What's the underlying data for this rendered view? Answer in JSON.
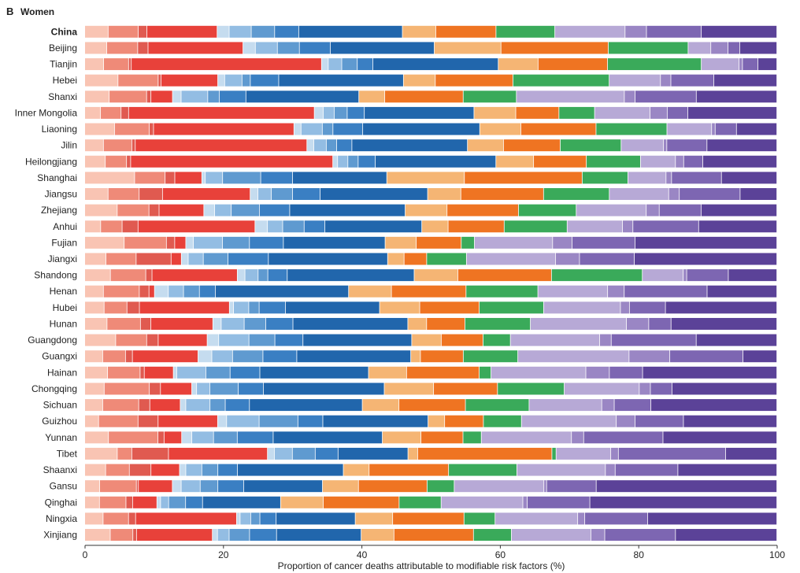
{
  "panel_label": "B",
  "panel_title": "Women",
  "chart_data": {
    "type": "bar",
    "orientation": "horizontal",
    "stacked": true,
    "xlabel": "Proportion of cancer deaths attributable to modifiable risk factors (%)",
    "xlim": [
      0,
      100
    ],
    "xticks": [
      "0",
      "20",
      "40",
      "60",
      "80",
      "100"
    ],
    "categories": [
      "China",
      "Beijing",
      "Tianjin",
      "Hebei",
      "Shanxi",
      "Inner Mongolia",
      "Liaoning",
      "Jilin",
      "Heilongjiang",
      "Shanghai",
      "Jiangsu",
      "Zhejiang",
      "Anhui",
      "Fujian",
      "Jiangxi",
      "Shandong",
      "Henan",
      "Hubei",
      "Hunan",
      "Guangdong",
      "Guangxi",
      "Hainan",
      "Chongqing",
      "Sichuan",
      "Guizhou",
      "Yunnan",
      "Tibet",
      "Shaanxi",
      "Gansu",
      "Qinghai",
      "Ningxia",
      "Xinjiang"
    ],
    "bold_categories": [
      "China"
    ],
    "series_colors": [
      "#f9c4b3",
      "#ef8a78",
      "#e05a50",
      "#e8413a",
      "#c5dcef",
      "#93bde3",
      "#5f9ad0",
      "#3a7fc3",
      "#2166ac",
      "#f5b574",
      "#ef7422",
      "#3aaa5a",
      "#b7a9d6",
      "#9a86c4",
      "#7d66b2",
      "#5b4298"
    ],
    "rows": [
      [
        3.5,
        4.5,
        1.3,
        10.5,
        1.8,
        3.3,
        3.5,
        3.6,
        15.5,
        5,
        9,
        8.8,
        10.5,
        3.2,
        8.2,
        11.3
      ],
      [
        3.2,
        4.5,
        1.5,
        13.8,
        1.8,
        3.2,
        3.2,
        4.5,
        15.1,
        9.7,
        15.6,
        11.6,
        3.3,
        2.5,
        1.7,
        5.4
      ],
      [
        2.8,
        3.7,
        0.4,
        28.2,
        1,
        2,
        2.3,
        2.3,
        18.6,
        5.9,
        10.3,
        13.9,
        5.6,
        0.5,
        2.3,
        2.8
      ],
      [
        4.8,
        5.8,
        0.4,
        8.2,
        1,
        2.5,
        1.2,
        4.1,
        18,
        4.6,
        11.2,
        13.9,
        7.4,
        1.5,
        6.2,
        9.1
      ],
      [
        3.4,
        5.2,
        0.6,
        3,
        1.2,
        3.7,
        1.6,
        3.7,
        15.7,
        3.6,
        10.9,
        7.4,
        15,
        1.5,
        8.5,
        11.2
      ],
      [
        2.3,
        3,
        1.1,
        27.1,
        1.3,
        1.6,
        1.9,
        2.5,
        16,
        6.1,
        6.3,
        5.2,
        8.1,
        2.5,
        3,
        13
      ],
      [
        4.2,
        4.9,
        0.6,
        19.8,
        1,
        3,
        1.5,
        4.2,
        16.5,
        5.8,
        10.6,
        10,
        6.3,
        0.5,
        3,
        5.7
      ],
      [
        2.7,
        4.1,
        0.5,
        24.8,
        1,
        1.8,
        1.5,
        2.2,
        16.7,
        5.2,
        8.2,
        8.8,
        6.1,
        0.5,
        5.8,
        10.1
      ],
      [
        3,
        3.1,
        0.6,
        29.5,
        0.7,
        1.5,
        1.5,
        2.5,
        17.6,
        5.5,
        7.7,
        7.9,
        5.1,
        1.2,
        2.8,
        10.8
      ],
      [
        7.2,
        4.4,
        1.4,
        3.9,
        0.5,
        2.5,
        5.5,
        4.6,
        13.6,
        11.2,
        17,
        6.6,
        5.5,
        0.8,
        7.2,
        8
      ],
      [
        3.3,
        4.4,
        3.3,
        12.4,
        1.1,
        1.9,
        3,
        3.9,
        15.2,
        4.7,
        11.7,
        9.3,
        8.4,
        1.5,
        8.6,
        5.2
      ],
      [
        4.5,
        4.4,
        1.4,
        6.2,
        1.5,
        2.3,
        3.9,
        4.2,
        16,
        5.8,
        9.9,
        8,
        9.7,
        1.8,
        5.8,
        10.5
      ],
      [
        2.3,
        3.1,
        2.3,
        16.9,
        1.8,
        2.2,
        3.1,
        3,
        14,
        3.8,
        8.1,
        9.1,
        8,
        1.5,
        9.5,
        11.3
      ],
      [
        5.7,
        6.1,
        1.2,
        1.6,
        1.1,
        4.2,
        3.9,
        4.9,
        14.7,
        4.5,
        6.5,
        1.9,
        11.3,
        2.8,
        9.1,
        20.5
      ],
      [
        3.1,
        4.4,
        5.1,
        1.5,
        1,
        2.2,
        3.6,
        5.9,
        17.4,
        2.4,
        3.3,
        5.8,
        13,
        3.5,
        8,
        20.8
      ],
      [
        3.7,
        5.1,
        0.9,
        12.3,
        1.1,
        1.9,
        1.4,
        2.8,
        18.3,
        6.3,
        13.5,
        13.1,
        5.9,
        0.5,
        6,
        7
      ],
      [
        2.7,
        5.2,
        1.4,
        0.8,
        2,
        2.2,
        2.3,
        2.3,
        19.3,
        6.2,
        10.8,
        10.4,
        10.1,
        2.4,
        12,
        10.1
      ],
      [
        2.8,
        3.3,
        1.8,
        13,
        0.6,
        2.2,
        1.5,
        3.8,
        13.6,
        5.8,
        8.6,
        9.3,
        11.1,
        1.3,
        5.2,
        16.1
      ],
      [
        3.2,
        4.8,
        1.5,
        8.9,
        1.2,
        3.3,
        3.1,
        3.9,
        16.5,
        2.7,
        5.5,
        9.4,
        13.8,
        3.2,
        3.2,
        15.2
      ],
      [
        4.3,
        4.3,
        1.6,
        6.8,
        1.6,
        4.2,
        3.6,
        3.9,
        15.1,
        4.1,
        5.8,
        3.8,
        12.4,
        1.6,
        11.8,
        11.2
      ],
      [
        2.6,
        3.3,
        1,
        9.5,
        2,
        3,
        4.4,
        4.9,
        16.5,
        1.4,
        6.2,
        7.9,
        16.1,
        5.9,
        10.6,
        4.9
      ],
      [
        3.3,
        4.7,
        0.6,
        4.2,
        0.5,
        4.2,
        3.5,
        4.3,
        15.7,
        5.5,
        10.5,
        1.7,
        13.7,
        3.4,
        4.8,
        19.4
      ],
      [
        2.8,
        6.5,
        1.6,
        4.5,
        0.7,
        1.9,
        4.1,
        3.6,
        17.4,
        7.1,
        9.2,
        9.6,
        10.8,
        1.6,
        3.1,
        15.1
      ],
      [
        2.6,
        5.2,
        1.6,
        4.4,
        0.8,
        3.5,
        2.2,
        3.5,
        16.3,
        5.3,
        9.6,
        9.2,
        10.5,
        1.8,
        5.3,
        18.2
      ],
      [
        2,
        5.7,
        2.9,
        8.6,
        1.3,
        4.7,
        5.6,
        3.6,
        15.2,
        2.4,
        5.6,
        5.5,
        13.7,
        2.7,
        7,
        13.5
      ],
      [
        3.5,
        7.3,
        0.9,
        2.6,
        1.5,
        3.2,
        3.5,
        5.3,
        16.1,
        5.7,
        6.2,
        2.7,
        13.3,
        1.8,
        11.7,
        16.8
      ],
      [
        4.7,
        2.1,
        5.3,
        14.3,
        1,
        2.6,
        3.3,
        3.3,
        10.1,
        1.4,
        19.4,
        0.6,
        7.9,
        1.1,
        15.5,
        7.4
      ],
      [
        3,
        3.4,
        3.1,
        4.1,
        0.9,
        2.3,
        2.3,
        2.8,
        15.2,
        3.7,
        11.4,
        9.8,
        12.7,
        1.4,
        9,
        14.2
      ],
      [
        2.2,
        5.4,
        0.3,
        5,
        1.3,
        2.8,
        2.6,
        3.8,
        11.6,
        5.3,
        10.1,
        4,
        13.2,
        0.4,
        7.3,
        26.6
      ],
      [
        2,
        3.6,
        0.9,
        3.3,
        0.5,
        1.1,
        2.3,
        2.3,
        10.6,
        5.8,
        10.3,
        5.7,
        11.1,
        0.6,
        8.5,
        25.4
      ],
      [
        2.6,
        3.6,
        1,
        14.3,
        0.5,
        1.5,
        1.3,
        2.3,
        11.2,
        5.3,
        10.1,
        4.4,
        11.7,
        1,
        8.9,
        18.3
      ],
      [
        3.5,
        3.1,
        0.5,
        10.4,
        0.7,
        1.6,
        2.8,
        3.7,
        11.6,
        4.5,
        10.9,
        5.2,
        10.9,
        1.9,
        9.7,
        13.9
      ]
    ]
  }
}
